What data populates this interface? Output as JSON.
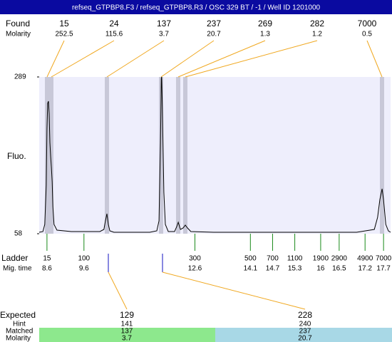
{
  "title": "refseq_GTPBP8.F3 / refseq_GTPBP8.R3 / OSC 329 BT  / -1 / Well ID 1201000",
  "found": {
    "label": "Found",
    "molarity_label": "Molarity",
    "sizes": [
      15,
      24,
      137,
      237,
      269,
      282,
      7000
    ],
    "molarity": [
      252.5,
      115.6,
      3.7,
      20.7,
      1.3,
      1.2,
      0.5
    ]
  },
  "chart_data": {
    "type": "line",
    "ylabel": "Fluo.",
    "ylim": [
      58,
      289
    ],
    "yticks": [
      58,
      289
    ],
    "xlim": [
      8.39,
      17.89
    ],
    "x": [
      8.39,
      8.49,
      8.54,
      8.58,
      8.6,
      8.62,
      8.64,
      8.66,
      8.68,
      8.7,
      8.72,
      8.74,
      8.76,
      8.79,
      8.87,
      9.26,
      10.03,
      10.14,
      10.18,
      10.22,
      10.26,
      10.3,
      10.41,
      11.38,
      11.57,
      11.63,
      11.67,
      11.69,
      11.7,
      11.72,
      11.76,
      11.8,
      11.88,
      12.05,
      12.11,
      12.15,
      12.21,
      12.28,
      12.34,
      12.4,
      12.49,
      13.11,
      16.97,
      17.45,
      17.54,
      17.6,
      17.66,
      17.7,
      17.76,
      17.83,
      17.89
    ],
    "series": [
      {
        "color": "#000000",
        "values": [
          60.1,
          61.2,
          71.7,
          129.4,
          213.4,
          250.2,
          253.3,
          234.4,
          192.4,
          171.4,
          155.7,
          134.7,
          97.9,
          71.7,
          63.3,
          61.2,
          61.2,
          64.3,
          76.9,
          87.4,
          71.7,
          62.2,
          60.1,
          60.1,
          62.2,
          76.9,
          192.4,
          286.9,
          289,
          244.9,
          118.9,
          71.7,
          61.2,
          61.2,
          68.5,
          74.8,
          64.3,
          66.4,
          70.6,
          66.4,
          61.2,
          60.1,
          60.1,
          64.3,
          82.2,
          108.4,
          124.2,
          108.4,
          71.7,
          62.2,
          60.1
        ]
      }
    ]
  },
  "ladder": {
    "label": "Ladder",
    "time_label": "Mig. time",
    "sizes": [
      15,
      100,
      300,
      500,
      700,
      1100,
      1900,
      2900,
      4900,
      7000
    ],
    "times": [
      8.6,
      9.6,
      12.6,
      14.1,
      14.7,
      15.3,
      16,
      16.5,
      17.2,
      17.7
    ]
  },
  "expected": {
    "label": "Expected",
    "hint_label": "Hint",
    "matched_label": "Matched",
    "molarity_label": "Molarity",
    "sizes": [
      129,
      228
    ],
    "hint": [
      141,
      240
    ],
    "matched": [
      137,
      237
    ],
    "molarity": [
      3.7,
      20.7
    ]
  }
}
